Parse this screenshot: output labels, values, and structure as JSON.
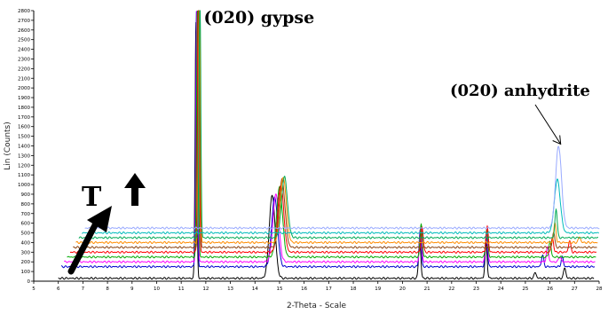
{
  "chart_data": {
    "type": "line",
    "xlabel": "2-Theta - Scale",
    "ylabel": "Lin (Counts)",
    "xlim": [
      5,
      28
    ],
    "ylim": [
      0,
      2800
    ],
    "x_ticks": [
      5,
      6,
      7,
      8,
      9,
      10,
      11,
      12,
      13,
      14,
      15,
      16,
      17,
      18,
      19,
      20,
      21,
      22,
      23,
      24,
      25,
      26,
      27,
      28
    ],
    "y_ticks": [
      0,
      100,
      200,
      300,
      400,
      500,
      600,
      700,
      800,
      900,
      1000,
      1100,
      1200,
      1300,
      1400,
      1500,
      1600,
      1700,
      1800,
      1900,
      2000,
      2100,
      2200,
      2300,
      2400,
      2500,
      2600,
      2700,
      2800
    ],
    "stack_offset": {
      "x_per_series": 0.12,
      "counts_per_series": 50
    },
    "series": [
      {
        "color": "#000000",
        "baseline": 30,
        "peaks": [
          [
            11.6,
            2660
          ],
          [
            14.7,
            860
          ],
          [
            20.7,
            400
          ],
          [
            23.4,
            350
          ],
          [
            25.4,
            60
          ],
          [
            26.6,
            110
          ]
        ]
      },
      {
        "color": "#0000cc",
        "baseline": 150,
        "peaks": [
          [
            11.62,
            2640
          ],
          [
            14.8,
            720
          ],
          [
            20.72,
            380
          ],
          [
            23.41,
            330
          ],
          [
            25.7,
            120
          ],
          [
            26.5,
            100
          ]
        ]
      },
      {
        "color": "#ff00ff",
        "baseline": 200,
        "peaks": [
          [
            11.64,
            2620
          ],
          [
            14.85,
            700
          ],
          [
            20.74,
            360
          ],
          [
            23.42,
            310
          ],
          [
            25.9,
            150
          ],
          [
            26.4,
            60
          ]
        ]
      },
      {
        "color": "#00aa00",
        "baseline": 250,
        "peaks": [
          [
            11.66,
            2600
          ],
          [
            15.0,
            720
          ],
          [
            20.76,
            340
          ],
          [
            23.43,
            290
          ],
          [
            26.0,
            160
          ]
        ]
      },
      {
        "color": "#ff0000",
        "baseline": 300,
        "peaks": [
          [
            11.7,
            2800
          ],
          [
            15.05,
            700
          ],
          [
            20.8,
            260
          ],
          [
            23.45,
            260
          ],
          [
            26.1,
            150
          ],
          [
            26.8,
            120
          ]
        ]
      },
      {
        "color": "#8b4513",
        "baseline": 350,
        "peaks": [
          [
            11.72,
            2580
          ],
          [
            15.1,
            700
          ],
          [
            26.15,
            160
          ]
        ]
      },
      {
        "color": "#ff8c00",
        "baseline": 400,
        "peaks": [
          [
            11.74,
            2560
          ],
          [
            15.15,
            680
          ],
          [
            26.2,
            200
          ],
          [
            27.2,
            60
          ]
        ]
      },
      {
        "color": "#00aa55",
        "baseline": 450,
        "peaks": [
          [
            11.76,
            2540
          ],
          [
            15.2,
            630
          ],
          [
            26.25,
            300
          ]
        ]
      },
      {
        "color": "#00bbbb",
        "baseline": 500,
        "peaks": [
          [
            26.3,
            550
          ]
        ]
      },
      {
        "color": "#99aaff",
        "baseline": 550,
        "peaks": [
          [
            26.35,
            850
          ]
        ]
      }
    ],
    "annotations": [
      {
        "text": "(020) gypse",
        "x": 11.7,
        "y": 2800
      },
      {
        "text": "(020) anhydrite",
        "x": 26.4,
        "y": 1400
      },
      {
        "text": "T",
        "x": 8,
        "y": 500
      }
    ]
  }
}
